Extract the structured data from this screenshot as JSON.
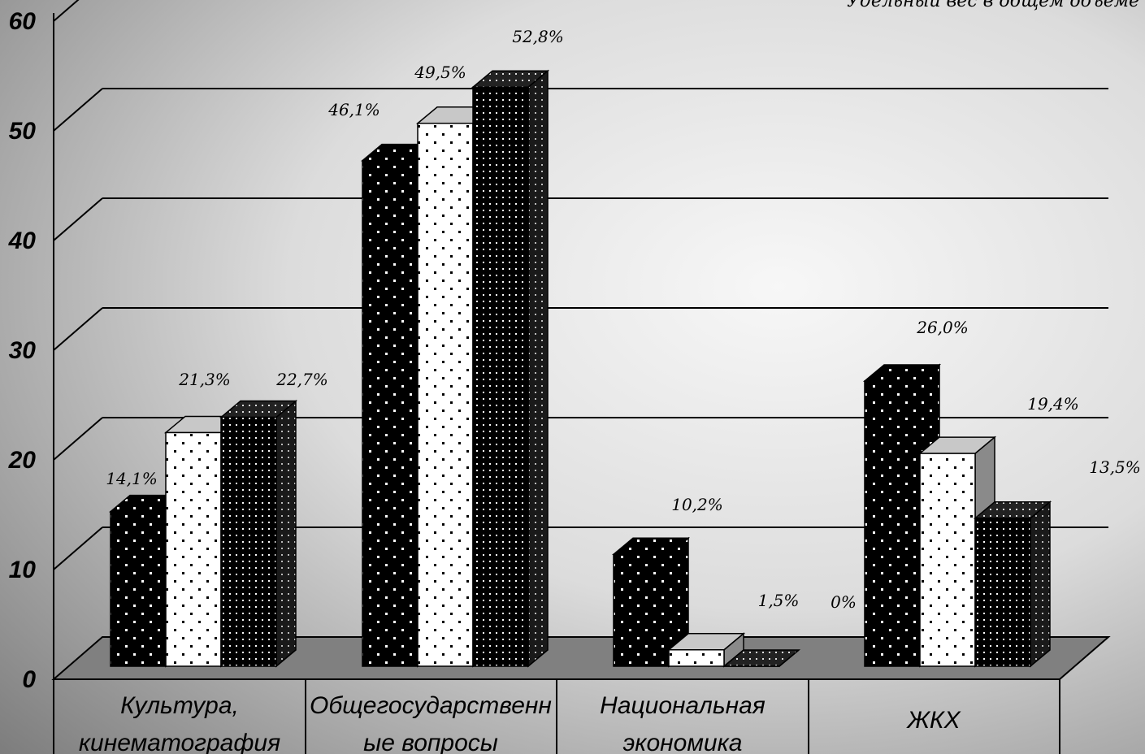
{
  "chart_data": {
    "type": "bar",
    "note": "Удельный вес в общем объеме",
    "categories": [
      [
        "Культура,",
        "кинематография"
      ],
      [
        "Общегосударственн",
        "ые вопросы"
      ],
      [
        "Национальная",
        "экономика"
      ],
      [
        "ЖКХ"
      ]
    ],
    "series": [
      {
        "values": [
          14.1,
          46.1,
          10.2,
          26.0
        ],
        "labels": [
          "14,1%",
          "46,1%",
          "10,2%",
          "26,0%"
        ]
      },
      {
        "values": [
          21.3,
          49.5,
          1.5,
          19.4
        ],
        "labels": [
          "21,3%",
          "49,5%",
          "1,5%",
          "19,4%"
        ]
      },
      {
        "values": [
          22.7,
          52.8,
          0,
          13.5
        ],
        "labels": [
          "22,7%",
          "52,8%",
          "0%",
          "13,5%"
        ]
      }
    ],
    "y_ticks": [
      "0",
      "10",
      "20",
      "30",
      "40",
      "50",
      "60"
    ],
    "ylim": [
      0,
      60
    ],
    "grid": true,
    "legend": false,
    "colors": {
      "background_light": "#f2f2f2",
      "background_dark": "#7a7a7a",
      "floor": "#808080",
      "series_1": "#000000",
      "series_2": "#ffffff",
      "series_3": "#000000"
    }
  }
}
